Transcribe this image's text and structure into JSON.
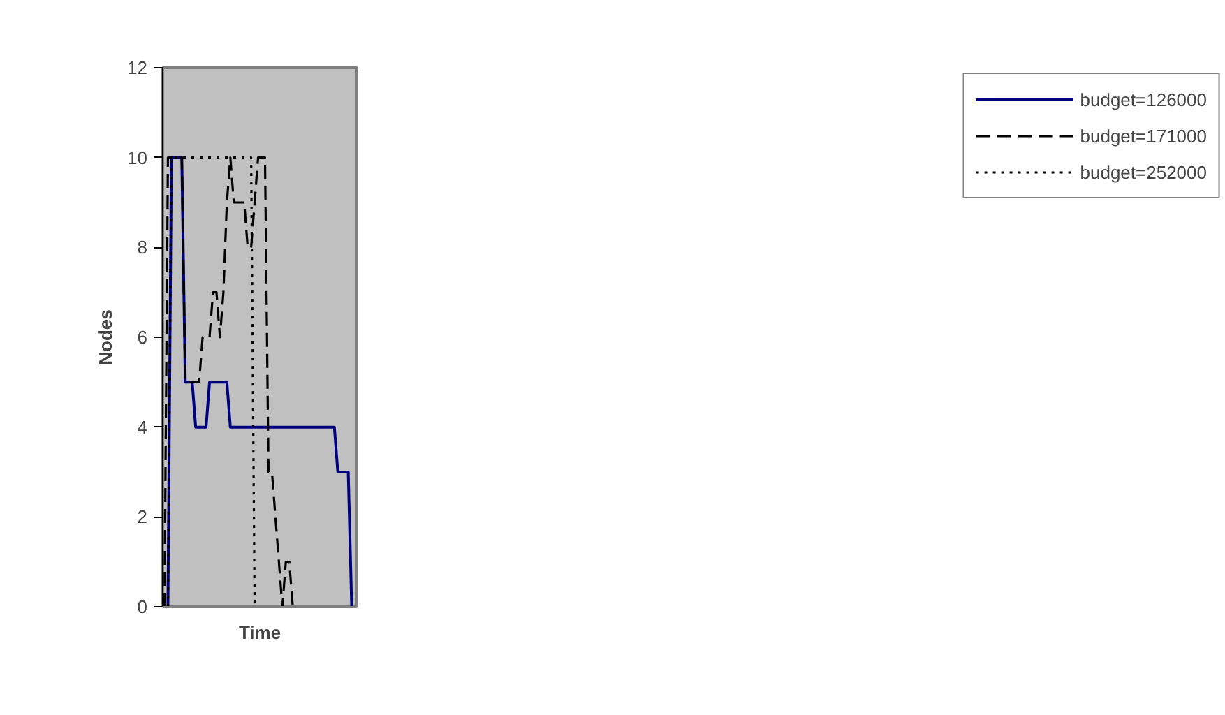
{
  "chart_data": {
    "type": "line",
    "xlabel": "Time",
    "ylabel": "Nodes",
    "ylim": [
      0,
      12
    ],
    "yticks": [
      0,
      2,
      4,
      6,
      8,
      10,
      12
    ],
    "tick_labels": "y",
    "legend": "right",
    "marker": "none",
    "categories": [
      null,
      null,
      null,
      null,
      null,
      null,
      null,
      null,
      null,
      null,
      null,
      null,
      null,
      null,
      null,
      null,
      null,
      null,
      null,
      null,
      null,
      null,
      null,
      null,
      null,
      null,
      null,
      null,
      null,
      null,
      null,
      null,
      null,
      null,
      null,
      null,
      null,
      null,
      null,
      null,
      null,
      null,
      null,
      null,
      null,
      null,
      null,
      null,
      null,
      null,
      null,
      null,
      null,
      null,
      null,
      null
    ],
    "series": [
      {
        "name": "budget=126000",
        "color": "#000080",
        "line_style": "solid",
        "values": [
          null,
          0,
          10,
          10,
          10,
          10,
          5,
          5,
          5,
          4,
          4,
          4,
          4,
          5,
          5,
          5,
          5,
          5,
          5,
          4,
          4,
          4,
          4,
          4,
          4,
          4,
          4,
          4,
          4,
          4,
          4,
          4,
          4,
          4,
          4,
          4,
          4,
          4,
          4,
          4,
          4,
          4,
          4,
          4,
          4,
          4,
          4,
          4,
          4,
          4,
          3,
          3,
          3,
          3,
          0,
          null
        ]
      },
      {
        "name": "budget=171000",
        "color": "#000000",
        "line_style": "dashed",
        "values": [
          0,
          10,
          10,
          10,
          10,
          10,
          5,
          5,
          5,
          5,
          5,
          6,
          6,
          6,
          7,
          7,
          6,
          7,
          9,
          10,
          9,
          9,
          9,
          9,
          8,
          8,
          9,
          10,
          10,
          10,
          3,
          3,
          2,
          1,
          0,
          1,
          1,
          0,
          null,
          null,
          null,
          null,
          null,
          null,
          null,
          null,
          null,
          null,
          null,
          null,
          null,
          null,
          null,
          null,
          null,
          null
        ]
      },
      {
        "name": "budget=252000",
        "color": "#000000",
        "line_style": "dotted",
        "values": [
          null,
          0,
          10,
          10,
          10,
          10,
          10,
          10,
          10,
          10,
          10,
          10,
          10,
          10,
          10,
          10,
          10,
          10,
          10,
          10,
          10,
          10,
          10,
          10,
          10,
          10,
          0,
          null,
          null,
          null,
          null,
          null,
          null,
          null,
          null,
          null,
          null,
          null,
          null,
          null,
          null,
          null,
          null,
          null,
          null,
          null,
          null,
          null,
          null,
          null,
          null,
          null,
          null,
          null,
          null,
          null
        ]
      }
    ]
  }
}
